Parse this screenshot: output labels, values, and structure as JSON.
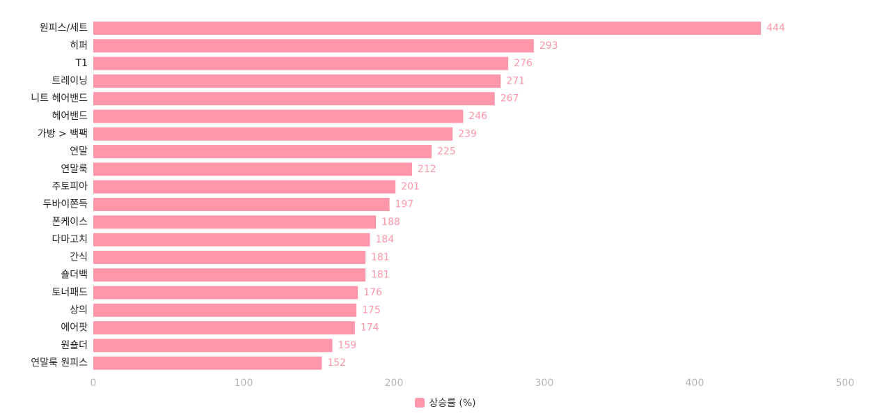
{
  "colors": {
    "bar": "#ff96aa",
    "value_label": "#ff96aa",
    "tick_label": "#b5b5b5",
    "category_label": "#222222"
  },
  "chart_data": {
    "type": "bar",
    "orientation": "horizontal",
    "categories": [
      "원피스/세트",
      "히퍼",
      "T1",
      "트레이닝",
      "니트 헤어밴드",
      "헤어밴드",
      "가방 > 백팩",
      "연말",
      "연말룩",
      "주토피아",
      "두바이쫀득",
      "폰케이스",
      "다마고치",
      "간식",
      "숄더백",
      "토너패드",
      "상의",
      "에어팟",
      "원숄더",
      "연말룩 원피스"
    ],
    "series": [
      {
        "name": "상승률 (%)",
        "values": [
          444,
          293,
          276,
          271,
          267,
          246,
          239,
          225,
          212,
          201,
          197,
          188,
          184,
          181,
          181,
          176,
          175,
          174,
          159,
          152
        ]
      }
    ],
    "xlim": [
      0,
      500
    ],
    "xticks": [
      0,
      100,
      200,
      300,
      400,
      500
    ],
    "grid": false,
    "legend": "bottom-center",
    "xlabel": "",
    "ylabel": "",
    "title": ""
  }
}
